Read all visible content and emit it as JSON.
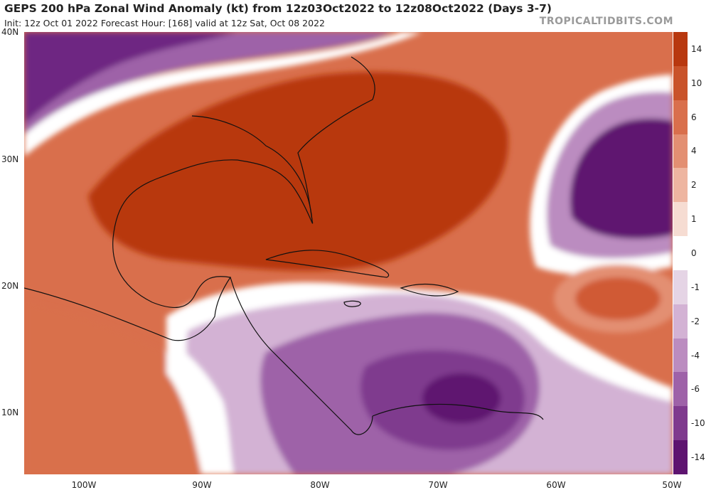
{
  "header": {
    "title": "GEPS 200 hPa Zonal Wind Anomaly (kt) from 12z03Oct2022 to 12z08Oct2022 (Days 3-7)",
    "subtitle": "Init: 12z Oct 01 2022   Forecast Hour: [168]   valid at 12z Sat, Oct 08 2022",
    "brand": "TROPICALTIDBITS.COM"
  },
  "axes": {
    "lat_labels": [
      "40N",
      "30N",
      "20N",
      "10N"
    ],
    "lon_labels": [
      "100W",
      "90W",
      "80W",
      "70W",
      "60W",
      "50W"
    ]
  },
  "colorbar": {
    "labels": [
      "14",
      "10",
      "6",
      "4",
      "2",
      "1",
      "0",
      "-1",
      "-2",
      "-4",
      "-6",
      "-10",
      "-14"
    ],
    "colors": [
      "#b8380f",
      "#c9532a",
      "#d96f4c",
      "#e38f72",
      "#eeb5a0",
      "#f6dcd2",
      "#ffffff",
      "#e5d4e5",
      "#d3b2d4",
      "#bb8cc0",
      "#9e62a8",
      "#7f3a8e",
      "#5e1470"
    ]
  },
  "map": {
    "region": "Gulf of Mexico, Caribbean and western Atlantic",
    "lat_range": [
      5,
      40
    ],
    "lon_range": [
      -105,
      -50
    ],
    "colors": {
      "strong_positive": "#b8380f",
      "positive": "#d96f4c",
      "weak_positive": "#eeb5a0",
      "neutral": "#ffffff",
      "weak_negative": "#d3b2d4",
      "negative": "#9e62a8",
      "strong_negative": "#5e1470"
    }
  }
}
